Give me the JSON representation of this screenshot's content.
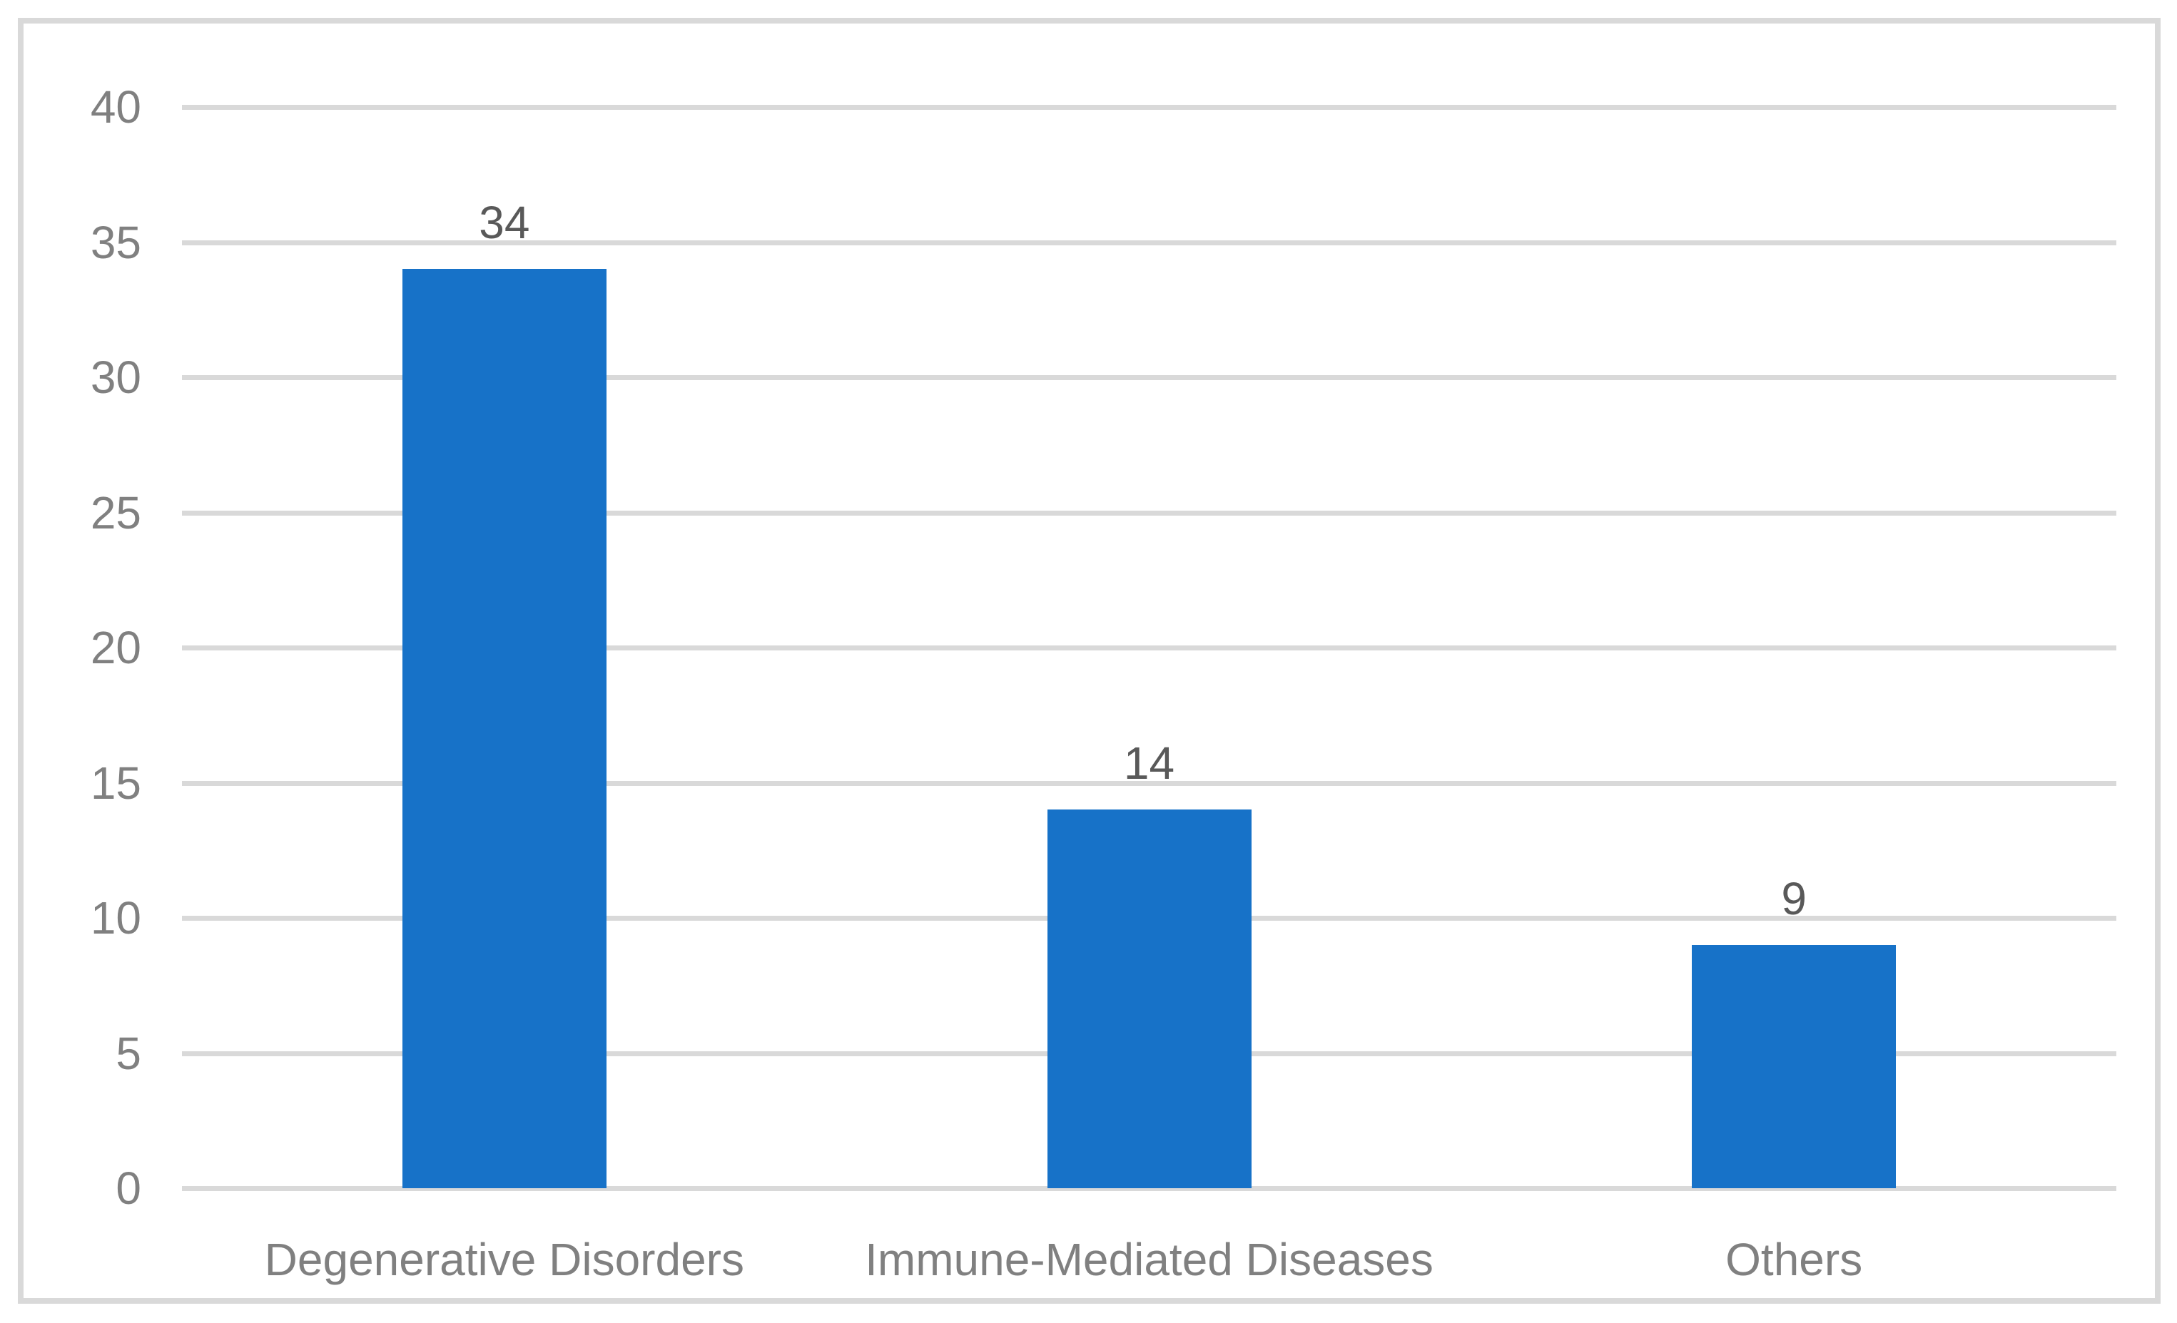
{
  "chart_data": {
    "type": "bar",
    "title": "",
    "categories": [
      "Degenerative Disorders",
      "Immune-Mediated Diseases",
      "Others"
    ],
    "values": [
      34,
      14,
      9
    ],
    "data_labels": [
      "34",
      "14",
      "9"
    ],
    "y_ticks": [
      0,
      5,
      10,
      15,
      20,
      25,
      30,
      35,
      40
    ],
    "ylim": [
      0,
      40
    ],
    "xlabel": "",
    "ylabel": "",
    "grid": "horizontal",
    "legend_position": "none",
    "colors": {
      "bar": "#1772C8",
      "gridline": "#D9D9D9",
      "frame_border": "#D9D9D9",
      "tick_label": "#808080",
      "category_label": "#808080",
      "value_label": "#595959",
      "background": "#FFFFFF"
    }
  }
}
